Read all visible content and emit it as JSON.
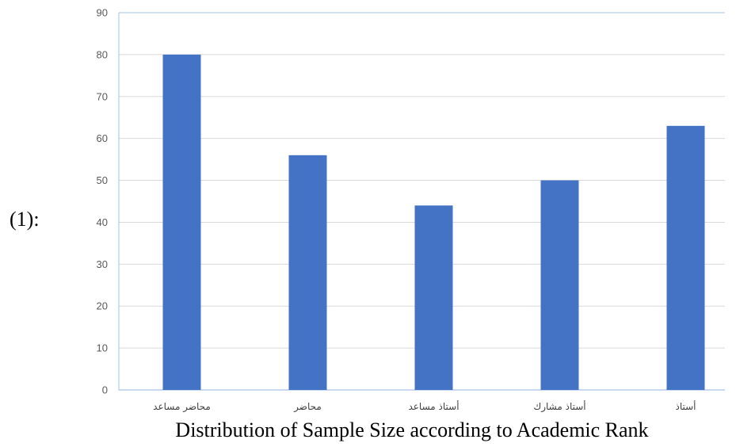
{
  "figure_number": "(1):",
  "caption": "Distribution of Sample Size according to Academic Rank",
  "chart_data": {
    "type": "bar",
    "categories": [
      "محاضر مساعد",
      "محاضر",
      "أستاذ مساعد",
      "أستاذ مشارك",
      "أستاذ"
    ],
    "values": [
      80,
      56,
      44,
      50,
      63
    ],
    "ylim": [
      0,
      90
    ],
    "yticks": [
      0,
      10,
      20,
      30,
      40,
      50,
      60,
      70,
      80,
      90
    ],
    "grid": true,
    "legend": "none",
    "colors": {
      "bar": "#4472C4",
      "grid": "#D9D9D9",
      "axis": "#A6C0E8",
      "text": "#595959"
    }
  }
}
